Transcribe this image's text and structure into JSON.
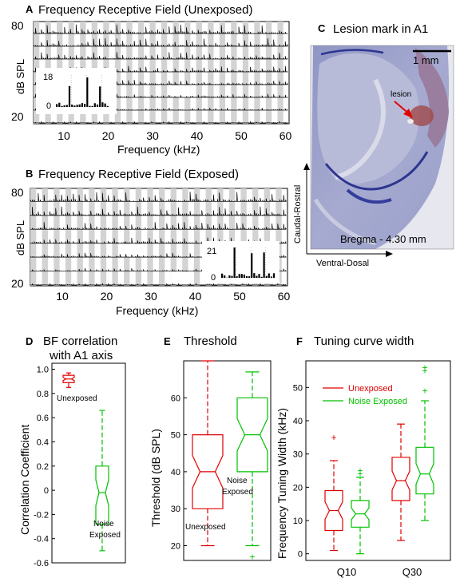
{
  "panelA": {
    "letter": "A",
    "title": "Frequency Receptive Field (Unexposed)",
    "ylabel": "dB SPL",
    "xlabel": "Frequency (kHz)",
    "yticks": [
      "80",
      "20"
    ],
    "xticks": [
      "10",
      "20",
      "30",
      "40",
      "50",
      "60"
    ],
    "inset_ticks": [
      "18",
      "0"
    ]
  },
  "panelB": {
    "letter": "B",
    "title": "Frequency Receptive Field (Exposed)",
    "ylabel": "dB SPL",
    "xlabel": "Frequency (kHz)",
    "yticks": [
      "80",
      "20"
    ],
    "xticks": [
      "10",
      "20",
      "30",
      "40",
      "50",
      "60"
    ],
    "inset_ticks": [
      "21",
      "0"
    ]
  },
  "panelC": {
    "letter": "C",
    "title": "Lesion mark in A1",
    "scale_label": "1 mm",
    "lesion_label": "lesion",
    "bregma_label": "Bregma - 4.30 mm",
    "axis_vertical": "Caudal-Rostral",
    "axis_horizontal": "Ventral-Dosal"
  },
  "chart_data": [
    {
      "type": "box",
      "letter": "D",
      "title": "BF correlation with A1 axis",
      "title_lines": [
        "BF correlation",
        "with A1 axis"
      ],
      "ylabel": "Correlation Coefficient",
      "ylim": [
        -0.6,
        1.05
      ],
      "yticks": [
        "1.0",
        "0.8",
        "0.6",
        "0.4",
        "0.2",
        "0",
        "-0.2",
        "-0.4",
        "-0.6"
      ],
      "series": [
        {
          "name": "Unexposed",
          "color": "#e00000",
          "min": 0.85,
          "q1": 0.89,
          "median": 0.92,
          "q3": 0.95,
          "max": 0.97
        },
        {
          "name": "Noise Exposed",
          "label_lines": [
            "Noise",
            "Exposed"
          ],
          "color": "#00c000",
          "min": -0.5,
          "q1": -0.28,
          "median": -0.02,
          "q3": 0.2,
          "max": 0.66
        }
      ]
    },
    {
      "type": "box",
      "letter": "E",
      "title": "Threshold",
      "ylabel": "Threshold (dB SPL)",
      "ylim": [
        16,
        70
      ],
      "yticks": [
        "60",
        "50",
        "40",
        "30",
        "20"
      ],
      "series": [
        {
          "name": "Unexposed",
          "color": "#e00000",
          "min": 20,
          "q1": 30,
          "median": 40,
          "q3": 50,
          "max": 70
        },
        {
          "name": "Noise Exposed",
          "label_lines": [
            "Noise",
            "Exposed"
          ],
          "color": "#00c000",
          "min": 20,
          "q1": 40,
          "median": 50,
          "q3": 60,
          "max": 67,
          "outliers": [
            17
          ]
        }
      ]
    },
    {
      "type": "box",
      "letter": "F",
      "title": "Tuning curve width",
      "ylabel": "Frequency Tuning Width (kHz)",
      "ylim": [
        -2,
        58
      ],
      "yticks": [
        "50",
        "40",
        "30",
        "20",
        "10",
        "0"
      ],
      "categories": [
        "Q10",
        "Q30"
      ],
      "legend": [
        {
          "name": "Unexposed",
          "color": "#e00000"
        },
        {
          "name": "Noise Exposed",
          "color": "#00c000"
        }
      ],
      "series": [
        {
          "name": "Unexposed",
          "color": "#e00000",
          "boxes": [
            {
              "min": 1,
              "q1": 7,
              "median": 13,
              "q3": 19,
              "max": 28,
              "outliers": [
                35
              ]
            },
            {
              "min": 4,
              "q1": 16,
              "median": 22,
              "q3": 29,
              "max": 39
            }
          ]
        },
        {
          "name": "Noise Exposed",
          "color": "#00c000",
          "boxes": [
            {
              "min": 0,
              "q1": 8,
              "median": 12,
              "q3": 16,
              "max": 23,
              "outliers": [
                24,
                25
              ]
            },
            {
              "min": 10,
              "q1": 18,
              "median": 24,
              "q3": 32,
              "max": 46,
              "outliers": [
                49,
                55,
                56
              ]
            }
          ]
        }
      ]
    }
  ]
}
